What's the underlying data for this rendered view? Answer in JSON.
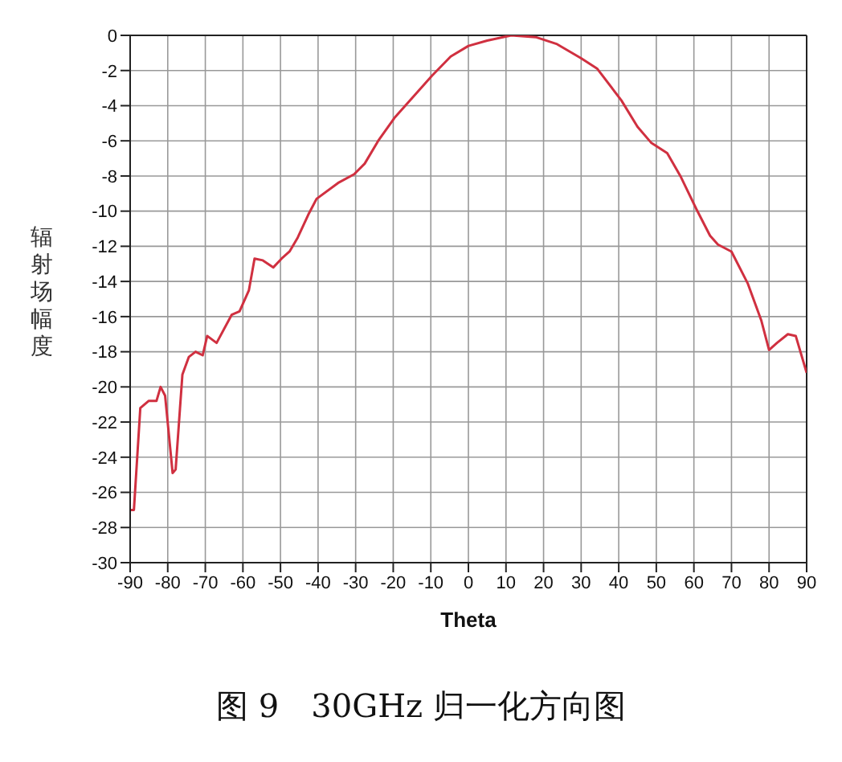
{
  "chart_data": {
    "type": "line",
    "title": "图 9　30GHz 归一化方向图",
    "xlabel": "Theta",
    "ylabel": "辐射场幅度",
    "xlim": [
      -90,
      90
    ],
    "xticks": [
      -90,
      -80,
      -70,
      -60,
      -50,
      -40,
      -30,
      -20,
      -10,
      0,
      10,
      20,
      30,
      40,
      50,
      60,
      70,
      80,
      90
    ],
    "ylim": [
      -30,
      0
    ],
    "yticks": [
      -30,
      -28,
      -26,
      -24,
      -22,
      -20,
      -18,
      -16,
      -14,
      -12,
      -10,
      -8,
      -6,
      -4,
      -2,
      0
    ],
    "grid": true,
    "marker": "none",
    "line_style": "solid",
    "series": [
      {
        "color": "#d03040",
        "x": [
          -90,
          -89,
          -87.3,
          -85.1,
          -83,
          -81.9,
          -80.7,
          -78.7,
          -77.9,
          -76.1,
          -74.4,
          -72.6,
          -70.7,
          -69.5,
          -67,
          -63,
          -60.9,
          -58.4,
          -56.9,
          -54.7,
          -51.9,
          -49.7,
          -47.6,
          -45.4,
          -42.6,
          -40.4,
          -34.7,
          -30.4,
          -27.6,
          -24,
          -19.7,
          -14.7,
          -9.7,
          -4.7,
          0,
          5,
          11.4,
          17.9,
          23.6,
          30,
          34.3,
          40.7,
          45,
          48.6,
          52.9,
          56.4,
          60.7,
          64.3,
          66.4,
          70,
          74.3,
          77.9,
          80,
          82.1,
          85,
          87.1,
          90
        ],
        "values": [
          -27,
          -27,
          -21.2,
          -20.8,
          -20.8,
          -20,
          -20.5,
          -24.9,
          -24.7,
          -19.3,
          -18.3,
          -18,
          -18.2,
          -17.1,
          -17.5,
          -15.9,
          -15.7,
          -14.5,
          -12.7,
          -12.8,
          -13.2,
          -12.7,
          -12.3,
          -11.5,
          -10.2,
          -9.3,
          -8.4,
          -7.9,
          -7.3,
          -6,
          -4.7,
          -3.5,
          -2.3,
          -1.2,
          -0.6,
          -0.3,
          0,
          -0.1,
          -0.5,
          -1.3,
          -1.9,
          -3.7,
          -5.2,
          -6.1,
          -6.7,
          -8,
          -9.9,
          -11.4,
          -11.9,
          -12.3,
          -14.1,
          -16.2,
          -17.9,
          -17.5,
          -17,
          -17.1,
          -19.2
        ]
      }
    ]
  }
}
